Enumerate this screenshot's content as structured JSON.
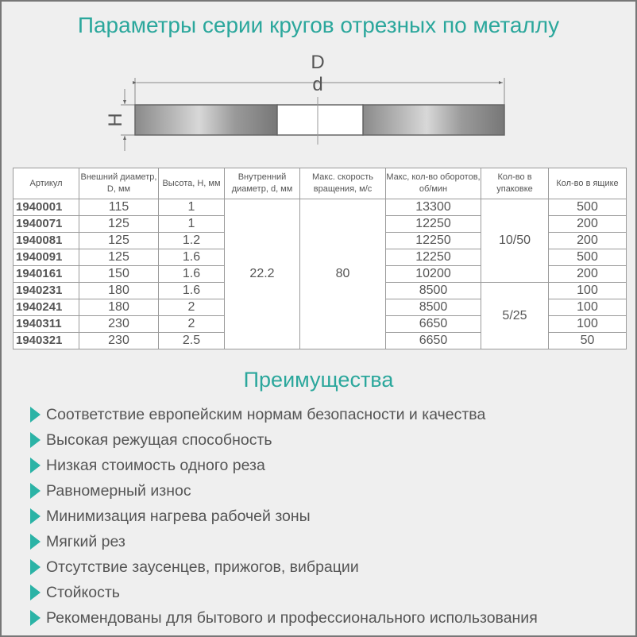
{
  "title": "Параметры серии кругов отрезных по металлу",
  "drawing": {
    "label_D": "D",
    "label_d": "d",
    "label_H": "H"
  },
  "table": {
    "headers": [
      "Артикул",
      "Внешний диаметр, D, мм",
      "Высота, H, мм",
      "Внутренний диаметр, d, мм",
      "Макс. скорость вращения, м/с",
      "Макс, кол-во оборотов, об/мин",
      "Кол-во в упаковке",
      "Кол-во в ящике"
    ],
    "inner_diameter": "22.2",
    "max_speed": "80",
    "pack_groups": [
      "10/50",
      "5/25"
    ],
    "rows": [
      {
        "art": "1940001",
        "D": "115",
        "H": "1",
        "rpm": "13300",
        "box": "500"
      },
      {
        "art": "1940071",
        "D": "125",
        "H": "1",
        "rpm": "12250",
        "box": "200"
      },
      {
        "art": "1940081",
        "D": "125",
        "H": "1.2",
        "rpm": "12250",
        "box": "200"
      },
      {
        "art": "1940091",
        "D": "125",
        "H": "1.6",
        "rpm": "12250",
        "box": "500"
      },
      {
        "art": "1940161",
        "D": "150",
        "H": "1.6",
        "rpm": "10200",
        "box": "200"
      },
      {
        "art": "1940231",
        "D": "180",
        "H": "1.6",
        "rpm": "8500",
        "box": "100"
      },
      {
        "art": "1940241",
        "D": "180",
        "H": "2",
        "rpm": "8500",
        "box": "100"
      },
      {
        "art": "1940311",
        "D": "230",
        "H": "2",
        "rpm": "6650",
        "box": "100"
      },
      {
        "art": "1940321",
        "D": "230",
        "H": "2.5",
        "rpm": "6650",
        "box": "50"
      }
    ]
  },
  "advantages": {
    "title": "Преимущества",
    "items": [
      "Соответствие европейским нормам безопасности и качества",
      "Высокая режущая способность",
      "Низкая стоимость одного реза",
      "Равномерный износ",
      "Минимизация нагрева рабочей зоны",
      "Мягкий рез",
      "Отсутствие заусенцев, прижогов, вибрации",
      "Стойкость",
      "Рекомендованы для бытового и профессионального использования"
    ]
  },
  "colors": {
    "accent": "#2ba79c",
    "background": "#efefef"
  }
}
